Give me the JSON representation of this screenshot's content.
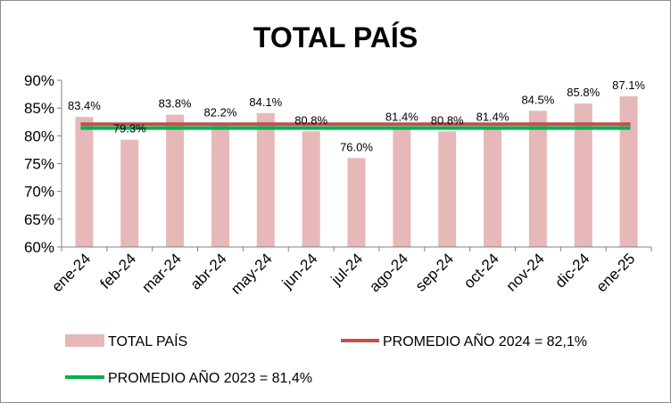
{
  "chart_data": {
    "type": "bar",
    "title": "TOTAL PAÍS",
    "xlabel": "",
    "ylabel": "",
    "ylim": [
      60,
      90
    ],
    "yticks": [
      "60%",
      "65%",
      "70%",
      "75%",
      "80%",
      "85%",
      "90%"
    ],
    "grid": false,
    "legend_position": "bottom",
    "categories": [
      "ene-24",
      "feb-24",
      "mar-24",
      "abr-24",
      "may-24",
      "jun-24",
      "jul-24",
      "ago-24",
      "sep-24",
      "oct-24",
      "nov-24",
      "dic-24",
      "ene-25"
    ],
    "series": [
      {
        "name": "TOTAL PAÍS",
        "type": "bar",
        "color": "#e6b8b7",
        "values": [
          83.4,
          79.3,
          83.8,
          82.2,
          84.1,
          80.8,
          76.0,
          81.4,
          80.8,
          81.4,
          84.5,
          85.8,
          87.1
        ],
        "labels": [
          "83.4%",
          "79.3%",
          "83.8%",
          "82.2%",
          "84.1%",
          "80.8%",
          "76.0%",
          "81.4%",
          "80.8%",
          "81.4%",
          "84.5%",
          "85.8%",
          "87.1%"
        ]
      },
      {
        "name": "PROMEDIO AÑO 2024 = 82,1%",
        "type": "line",
        "color": "#c0504d",
        "value": 82.1
      },
      {
        "name": "PROMEDIO AÑO 2023 = 81,4%",
        "type": "line",
        "color": "#00b050",
        "value": 81.4
      }
    ]
  }
}
